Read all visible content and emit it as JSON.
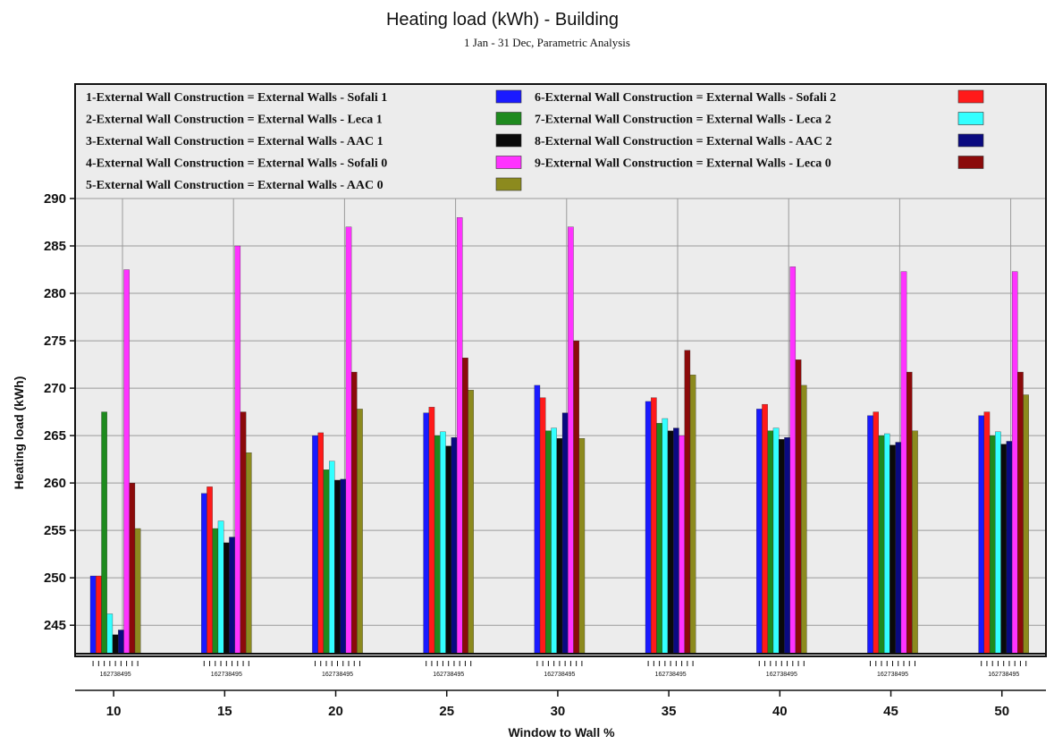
{
  "chart_data": {
    "type": "bar",
    "title": "Heating load (kWh) - Building",
    "subtitle": "1 Jan - 31 Dec, Parametric Analysis",
    "xlabel": "Window to Wall %",
    "ylabel": "Heating load (kWh)",
    "categories": [
      "10",
      "15",
      "20",
      "25",
      "30",
      "35",
      "40",
      "45",
      "50"
    ],
    "ylim": [
      242,
      290
    ],
    "yticks": [
      245,
      250,
      255,
      260,
      265,
      270,
      275,
      280,
      285,
      290
    ],
    "grid": true,
    "legend_position": "top",
    "bar_order": [
      1,
      6,
      2,
      7,
      3,
      8,
      4,
      9,
      5
    ],
    "series": [
      {
        "id": 1,
        "name": "1-External Wall Construction = External Walls - Sofali 1",
        "color": "#1a1aff",
        "values": [
          250.2,
          258.9,
          265.0,
          267.4,
          270.3,
          268.6,
          267.8,
          267.1,
          267.1
        ]
      },
      {
        "id": 2,
        "name": "2-External Wall Construction = External Walls - Leca 1",
        "color": "#1e8a1e",
        "values": [
          267.5,
          255.2,
          261.4,
          265.0,
          265.5,
          266.3,
          265.5,
          265.0,
          265.0
        ]
      },
      {
        "id": 3,
        "name": "3-External Wall Construction = External Walls - AAC 1",
        "color": "#0a0a0a",
        "values": [
          244.0,
          253.7,
          260.3,
          263.9,
          264.7,
          265.5,
          264.6,
          264.0,
          264.1
        ]
      },
      {
        "id": 4,
        "name": "4-External Wall Construction = External Walls - Sofali 0",
        "color": "#ff33ff",
        "values": [
          282.5,
          285.0,
          287.0,
          288.0,
          287.0,
          265.0,
          282.8,
          282.3,
          282.3
        ]
      },
      {
        "id": 5,
        "name": "5-External Wall Construction = External Walls - AAC 0",
        "color": "#8c8a1e",
        "values": [
          255.2,
          263.2,
          267.8,
          269.8,
          264.7,
          271.4,
          270.3,
          265.5,
          269.3
        ]
      },
      {
        "id": 6,
        "name": "6-External Wall Construction = External Walls - Sofali 2",
        "color": "#ff1a1a",
        "values": [
          250.2,
          259.6,
          265.3,
          268.0,
          269.0,
          269.0,
          268.3,
          267.5,
          267.5
        ]
      },
      {
        "id": 7,
        "name": "7-External Wall Construction = External Walls - Leca 2",
        "color": "#33ffff",
        "values": [
          246.2,
          256.0,
          262.3,
          265.4,
          265.8,
          266.8,
          265.8,
          265.2,
          265.4
        ]
      },
      {
        "id": 8,
        "name": "8-External Wall Construction = External Walls - AAC 2",
        "color": "#0a0a80",
        "values": [
          244.5,
          254.3,
          260.4,
          264.8,
          267.4,
          265.8,
          264.8,
          264.3,
          264.4
        ]
      },
      {
        "id": 9,
        "name": "9-External Wall Construction = External Walls - Leca 0",
        "color": "#8b0a0a",
        "values": [
          260.0,
          267.5,
          271.7,
          273.2,
          275.0,
          274.0,
          273.0,
          271.7,
          271.7
        ]
      }
    ],
    "sequence_label": "162738495"
  }
}
